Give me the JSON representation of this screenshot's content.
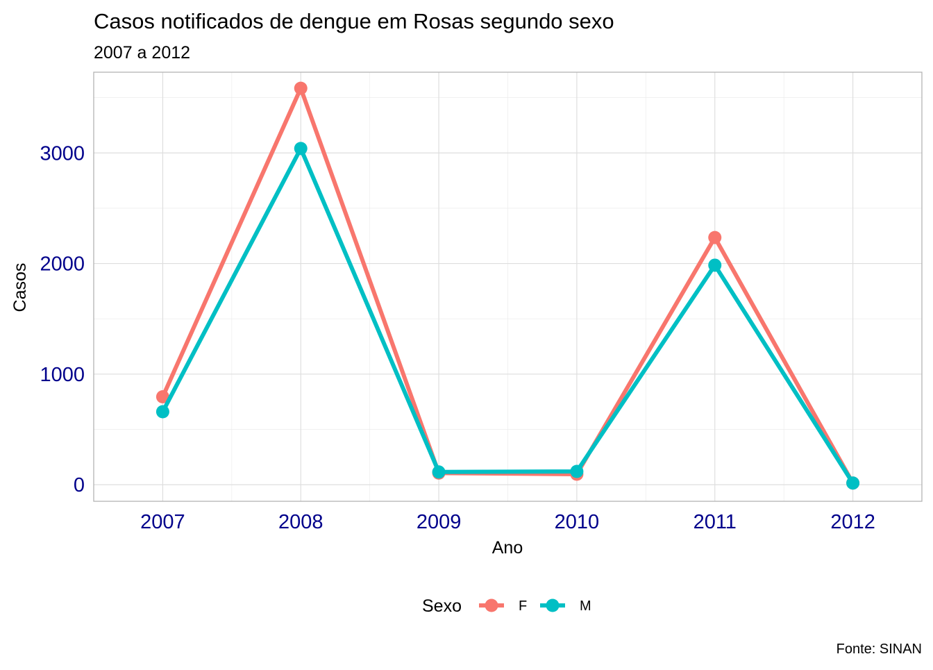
{
  "chart_data": {
    "type": "line",
    "title": "Casos notificados de dengue em Rosas segundo sexo",
    "subtitle": "2007 a 2012",
    "xlabel": "Ano",
    "ylabel": "Casos",
    "caption": "Fonte: SINAN",
    "x": [
      "2007",
      "2008",
      "2009",
      "2010",
      "2011",
      "2012"
    ],
    "series": [
      {
        "name": "F",
        "color": "#F8766D",
        "values": [
          795,
          3585,
          105,
          95,
          2235,
          15
        ]
      },
      {
        "name": "M",
        "color": "#00BFC4",
        "values": [
          660,
          3040,
          115,
          120,
          1985,
          15
        ]
      }
    ],
    "y_ticks": [
      0,
      1000,
      2000,
      3000
    ],
    "y_tick_labels": [
      "0",
      "1000",
      "2000",
      "3000"
    ],
    "ylim": [
      -150,
      3730
    ],
    "tick_label_color": "#00008B",
    "grid": true,
    "legend": {
      "title": "Sexo",
      "position": "bottom"
    }
  }
}
